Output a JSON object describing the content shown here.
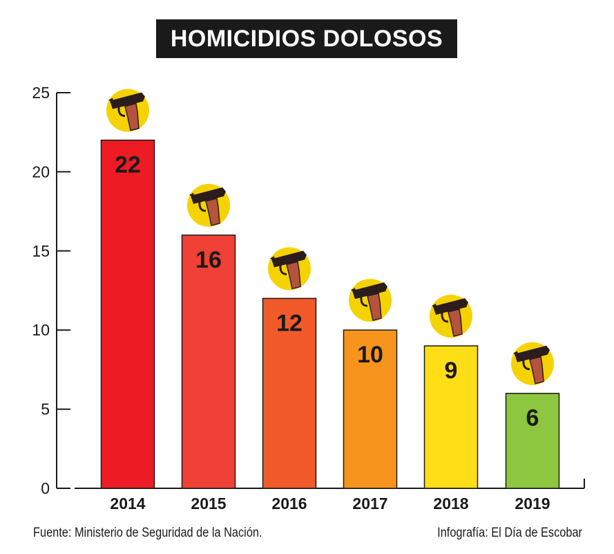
{
  "chart_data": {
    "type": "bar",
    "title": "HOMICIDIOS DOLOSOS",
    "categories": [
      "2014",
      "2015",
      "2016",
      "2017",
      "2018",
      "2019"
    ],
    "values": [
      22,
      16,
      12,
      10,
      9,
      6
    ],
    "data_labels": [
      "22",
      "16",
      "12",
      "10",
      "9",
      "6"
    ],
    "bar_colors": [
      "#ed1c24",
      "#ef4136",
      "#f15a29",
      "#f7941d",
      "#ffde17",
      "#8dc63f"
    ],
    "ylim": [
      0,
      25
    ],
    "yticks": [
      0,
      5,
      10,
      15,
      20,
      25
    ],
    "ytick_labels": [
      "0",
      "5",
      "10",
      "15",
      "20",
      "25"
    ],
    "xlabel": "",
    "ylabel": "",
    "grid": false,
    "marker_icon": "handgun-icon",
    "marker_bg_color": "#f5d300"
  },
  "footer": {
    "source": "Fuente: Ministerio de Seguridad de la Nación.",
    "credit": "Infografía: El Día de Escobar"
  }
}
